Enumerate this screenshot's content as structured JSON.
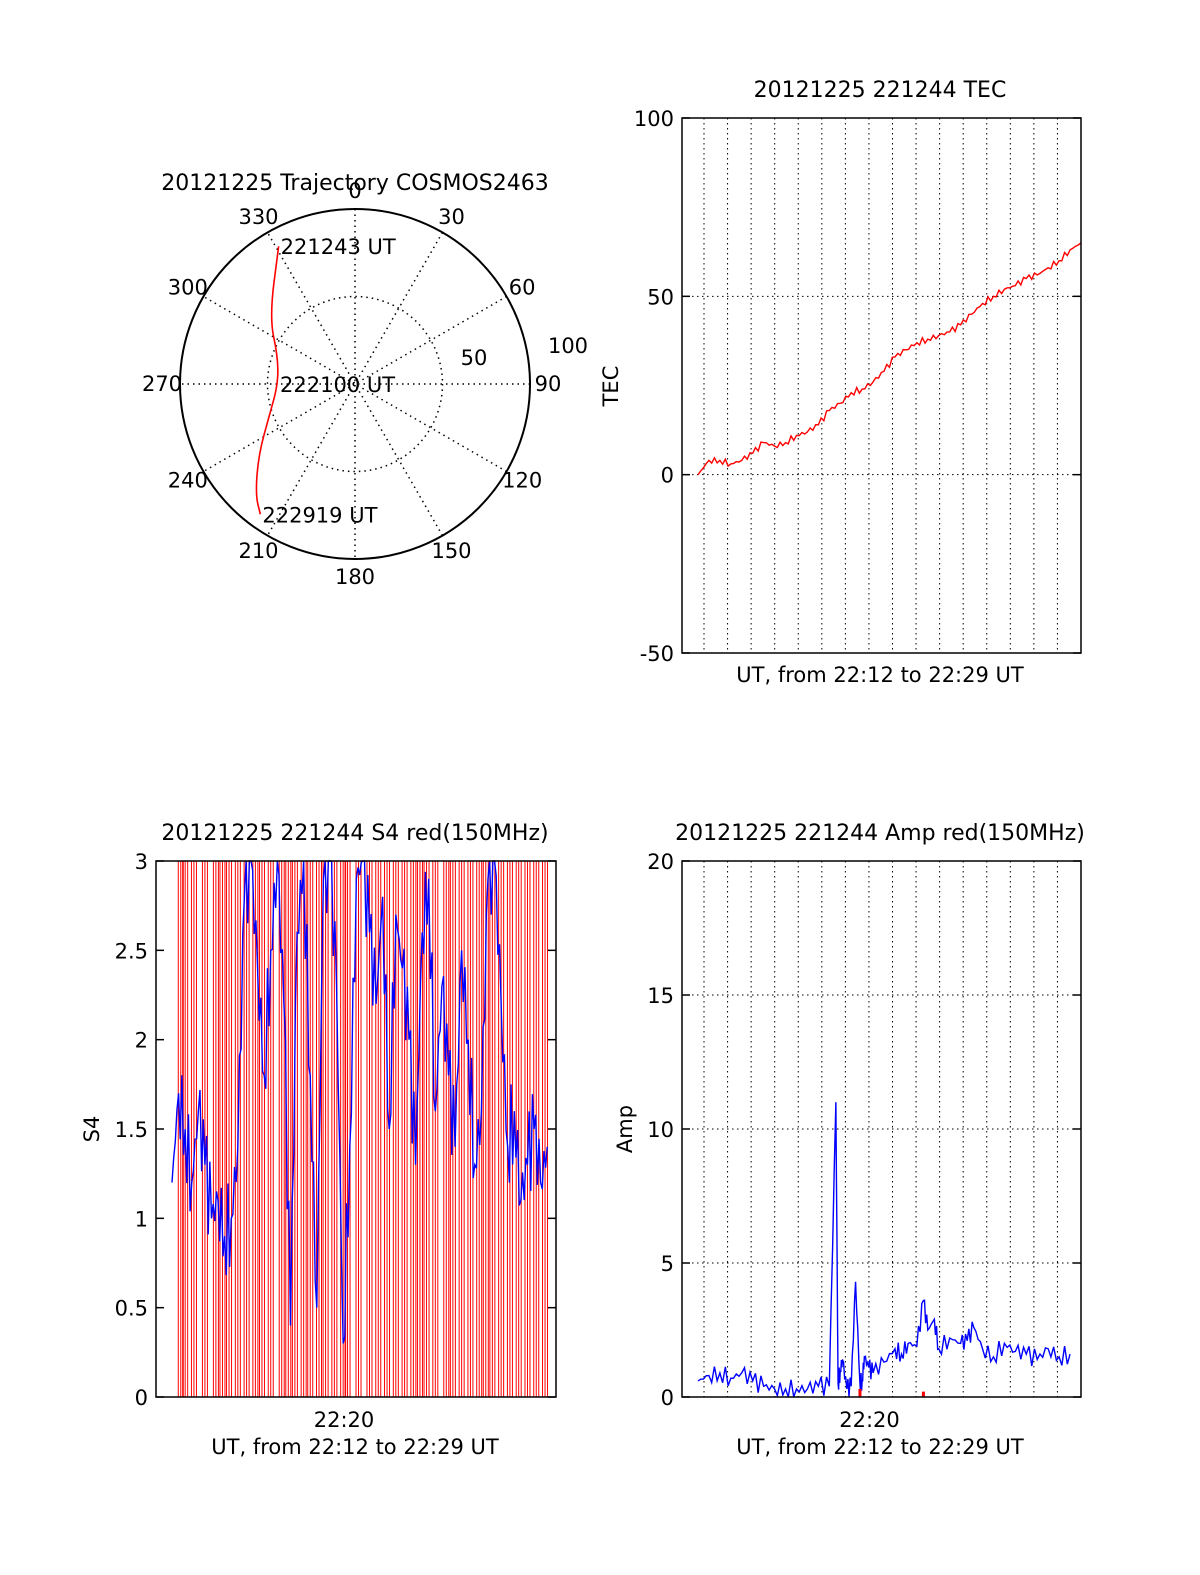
{
  "colors": {
    "red": "#ff0000",
    "blue": "#0000ff",
    "axis": "#000000",
    "grid": "#000000"
  },
  "chart_data": [
    {
      "id": "trajectory",
      "type": "scatter",
      "subtype": "polar",
      "title": "20121225 Trajectory COSMOS2463",
      "angle_labels": [
        "0",
        "30",
        "60",
        "90",
        "120",
        "150",
        "180",
        "210",
        "240",
        "270",
        "300",
        "330"
      ],
      "angle_ticks": [
        0,
        30,
        60,
        90,
        120,
        150,
        180,
        210,
        240,
        270,
        300,
        330
      ],
      "radial_labels": [
        "50",
        "100"
      ],
      "radial_ticks": [
        50,
        100
      ],
      "rlim": [
        0,
        100
      ],
      "grid": true,
      "direction": "clockwise from top",
      "series": [
        {
          "color": "red",
          "points": [
            [
              331,
              90
            ],
            [
              308,
              62
            ],
            [
              290,
              47
            ],
            [
              270,
              44
            ],
            [
              250,
              52
            ],
            [
              234,
              68
            ],
            [
              222,
              85
            ],
            [
              216,
              92
            ]
          ]
        }
      ],
      "annotations": [
        {
          "text": "221243 UT",
          "az": 331,
          "r": 90
        },
        {
          "text": "222100 UT",
          "az": 270,
          "r": 44
        },
        {
          "text": "222919 UT",
          "az": 216,
          "r": 92
        }
      ]
    },
    {
      "id": "tec",
      "type": "line",
      "title": "20121225 221244 TEC",
      "xlabel": "UT, from 22:12 to 22:29 UT",
      "ylabel": "TEC",
      "ylim": [
        -50,
        100
      ],
      "yticks": [
        "100",
        "50",
        "0",
        "-50"
      ],
      "ytick_values": [
        100,
        50,
        0,
        -50
      ],
      "xticks": [],
      "grid": true,
      "series": [
        {
          "color": "red",
          "x": [
            0.0,
            0.5,
            1.0,
            1.5,
            2.0,
            2.5,
            3.0,
            3.5,
            4.0,
            4.5,
            5.0,
            5.5,
            6.0,
            6.5,
            7.0,
            7.5,
            8.0,
            8.5,
            9.0,
            9.5,
            10.0,
            10.5,
            11.0,
            11.5,
            12.0,
            12.5,
            13.0,
            13.5,
            14.0,
            14.5,
            15.0,
            15.5,
            16.0,
            16.5,
            17.0,
            17.5
          ],
          "y": [
            0,
            4,
            4,
            3,
            4,
            6,
            9,
            8,
            9,
            11,
            12,
            14,
            18,
            20,
            23,
            24,
            26,
            29,
            33,
            35,
            37,
            38,
            39,
            40,
            42,
            45,
            48,
            50,
            52,
            53,
            55,
            56,
            58,
            60,
            63,
            65
          ]
        }
      ]
    },
    {
      "id": "s4",
      "type": "line",
      "title": "20121225 221244 S4 red(150MHz)",
      "xlabel": "UT, from 22:12 to 22:29 UT",
      "ylabel": "S4",
      "ylim": [
        0,
        3
      ],
      "yticks": [
        "3",
        "2.5",
        "2",
        "1.5",
        "1",
        "0.5",
        "0"
      ],
      "ytick_values": [
        3,
        2.5,
        2,
        1.5,
        1,
        0.5,
        0
      ],
      "xticks": [
        "22:20"
      ],
      "grid": false,
      "series": [
        {
          "color": "red",
          "style": "dense vertical spikes",
          "x": [
            0.4,
            0.6,
            1.0,
            1.5,
            2.0,
            2.3,
            2.6,
            3.0,
            3.4,
            3.8,
            4.1,
            4.5,
            5.0,
            5.3,
            5.6,
            6.0,
            6.3,
            6.7,
            7.0,
            7.4,
            7.8,
            8.0,
            8.5,
            9.0,
            9.4,
            9.8,
            10.2,
            10.6,
            11.0,
            11.3,
            11.6,
            12.0,
            12.5,
            12.8,
            13.2,
            13.6,
            14.0,
            14.3,
            14.6,
            15.0,
            15.4,
            15.8,
            16.2,
            16.6,
            17.0
          ],
          "y": [
            3,
            0,
            3,
            3,
            0,
            3,
            3,
            3,
            3,
            3,
            3,
            3,
            3,
            3,
            3,
            3,
            3,
            3,
            3,
            3,
            3,
            3,
            3,
            0,
            3,
            3,
            3,
            3,
            3,
            0,
            3,
            3,
            3,
            3,
            0,
            3,
            3,
            3,
            3,
            3,
            3,
            3,
            3,
            3,
            3
          ]
        },
        {
          "color": "blue",
          "x": [
            0.0,
            0.3,
            0.6,
            0.9,
            1.2,
            1.5,
            1.8,
            2.1,
            2.4,
            2.7,
            3.0,
            3.3,
            3.6,
            3.9,
            4.2,
            4.5,
            4.8,
            5.1,
            5.4,
            5.7,
            6.0,
            6.3,
            6.6,
            6.9,
            7.2,
            7.5,
            7.8,
            8.1,
            8.4,
            8.7,
            9.0,
            9.3,
            9.6,
            9.9,
            10.2,
            10.5,
            10.8,
            11.1,
            11.4,
            11.7,
            12.0,
            12.3,
            12.6,
            12.9,
            13.2,
            13.5,
            13.8,
            14.1,
            14.4,
            14.7,
            15.0,
            15.3,
            15.6,
            15.9,
            16.2,
            16.5,
            16.8,
            17.1
          ],
          "y": [
            1.2,
            1.7,
            1.5,
            1.2,
            1.6,
            1.3,
            1.0,
            1.1,
            0.9,
            1.0,
            1.4,
            2.8,
            3.0,
            2.4,
            1.8,
            2.5,
            3.0,
            2.2,
            0.4,
            2.6,
            3.0,
            1.8,
            0.5,
            2.9,
            3.0,
            2.3,
            0.3,
            1.4,
            2.9,
            3.0,
            2.6,
            2.2,
            2.8,
            1.5,
            2.7,
            2.4,
            2.0,
            1.3,
            2.6,
            2.9,
            1.6,
            2.3,
            1.8,
            1.4,
            2.5,
            2.0,
            1.3,
            1.6,
            2.9,
            3.0,
            2.2,
            1.4,
            1.6,
            1.1,
            1.3,
            1.5,
            1.2,
            1.4
          ]
        }
      ]
    },
    {
      "id": "amp",
      "type": "line",
      "title": "20121225 221244 Amp red(150MHz)",
      "xlabel": "UT, from 22:12 to 22:29 UT",
      "ylabel": "Amp",
      "ylim": [
        0,
        20
      ],
      "yticks": [
        "20",
        "15",
        "10",
        "5",
        "0"
      ],
      "ytick_values": [
        20,
        15,
        10,
        5,
        0
      ],
      "xticks": [
        "22:20"
      ],
      "grid": true,
      "series": [
        {
          "color": "blue",
          "x": [
            0.0,
            0.5,
            1.0,
            1.5,
            2.0,
            2.5,
            3.0,
            3.5,
            4.0,
            4.5,
            5.0,
            5.5,
            6.0,
            6.3,
            6.4,
            6.5,
            6.6,
            6.8,
            7.0,
            7.2,
            7.4,
            7.5,
            7.6,
            7.8,
            8.0,
            8.5,
            9.0,
            9.3,
            9.6,
            10.0,
            10.3,
            10.5,
            10.8,
            11.0,
            11.5,
            12.0,
            12.3,
            12.6,
            13.0,
            13.5,
            14.0,
            14.5,
            15.0,
            15.5,
            16.0,
            16.5,
            17.0
          ],
          "y": [
            0.6,
            0.8,
            0.9,
            0.7,
            0.9,
            0.6,
            0.4,
            0.3,
            0.3,
            0.3,
            0.3,
            0.4,
            0.4,
            11.0,
            0.5,
            1.0,
            1.4,
            0.3,
            0.4,
            4.3,
            0.5,
            0.6,
            1.5,
            1.1,
            0.9,
            1.3,
            1.8,
            1.6,
            2.0,
            1.9,
            3.6,
            2.5,
            2.9,
            1.8,
            2.2,
            2.0,
            2.1,
            2.6,
            1.8,
            1.5,
            2.0,
            1.7,
            1.6,
            1.4,
            1.8,
            1.5,
            1.6
          ]
        },
        {
          "color": "red",
          "x": [
            7.4,
            10.3
          ],
          "y": [
            0.3,
            0.2
          ]
        }
      ]
    }
  ]
}
